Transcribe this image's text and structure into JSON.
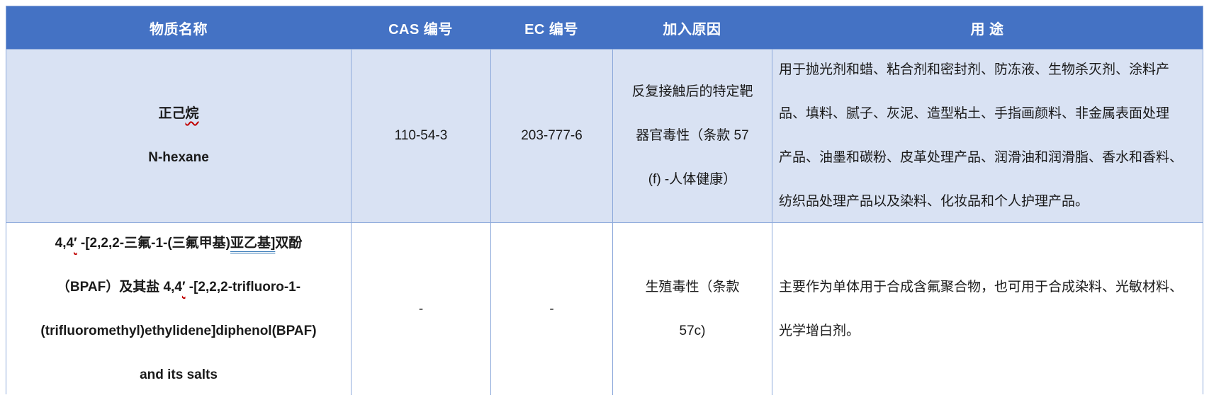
{
  "colors": {
    "header_bg": "#4472C4",
    "band_bg": "#D9E2F3",
    "border": "#8EAADB",
    "text": "#1A1A1A",
    "header_text": "#FFFFFF",
    "squiggle_red": "#C00000",
    "underline_blue": "#2E74B5"
  },
  "header": {
    "columns": [
      "物质名称",
      "CAS 编号",
      "EC 编号",
      "加入原因",
      "用 途"
    ]
  },
  "rows": [
    {
      "name": {
        "cn_prefix": "正己",
        "cn_squiggle": "烷",
        "en": "N-hexane"
      },
      "cas": "110-54-3",
      "ec": "203-777-6",
      "reason": "反复接触后的特定靶\n器官毒性（条款 57\n(f) -人体健康）",
      "use": "用于抛光剂和蜡、粘合剂和密封剂、防冻液、生物杀灭剂、涂料产\n品、填料、腻子、灰泥、造型粘土、手指画颜料、非金属表面处理\n产品、油墨和碳粉、皮革处理产品、润滑油和润滑脂、香水和香料、\n纺织品处理产品以及染料、化妆品和个人护理产品。"
    },
    {
      "name": {
        "l1_a": "4,4",
        "l1_prime": "′",
        "l1_b": " -[2,2,2-三氟-1-(三氟甲基)",
        "l1_underlined": "亚乙基]",
        "l1_c": "双酚",
        "l2_a": "（BPAF）及其盐 4,4",
        "l2_prime": "′",
        "l2_b": " -[2,2,2-trifluoro-1-",
        "l3": "(trifluoromethyl)ethylidene]diphenol(BPAF)",
        "l4": "and its salts"
      },
      "cas": "-",
      "ec": "-",
      "reason": "生殖毒性（条款\n57c)",
      "use": "主要作为单体用于合成含氟聚合物，也可用于合成染料、光敏材料、\n光学增白剂。"
    }
  ]
}
